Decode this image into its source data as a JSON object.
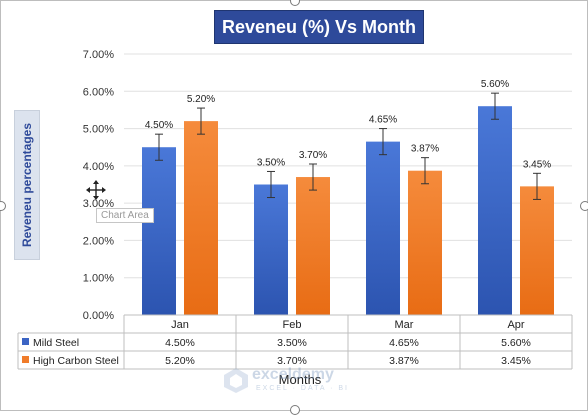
{
  "chart_data": {
    "type": "bar",
    "title": "Reveneu (%) Vs Month",
    "xlabel": "Months",
    "ylabel": "Reveneu percentages",
    "categories": [
      "Jan",
      "Feb",
      "Mar",
      "Apr"
    ],
    "ylim": [
      0,
      7
    ],
    "yticks": [
      "0.00%",
      "1.00%",
      "2.00%",
      "3.00%",
      "4.00%",
      "5.00%",
      "6.00%",
      "7.00%"
    ],
    "error_bars": true,
    "series": [
      {
        "name": "Mild Steel",
        "values": [
          4.5,
          3.5,
          4.65,
          5.6
        ],
        "labels": [
          "4.50%",
          "3.50%",
          "4.65%",
          "5.60%"
        ],
        "color": "#3b64c4"
      },
      {
        "name": "High Carbon Steel",
        "values": [
          5.2,
          3.7,
          3.87,
          3.45
        ],
        "labels": [
          "5.20%",
          "3.70%",
          "3.87%",
          "3.45%"
        ],
        "color": "#f07c2a"
      }
    ],
    "data_table": true
  },
  "tooltip": "Chart Area",
  "watermark": {
    "name": "exceldemy",
    "sub": "EXCEL · DATA · BI"
  }
}
